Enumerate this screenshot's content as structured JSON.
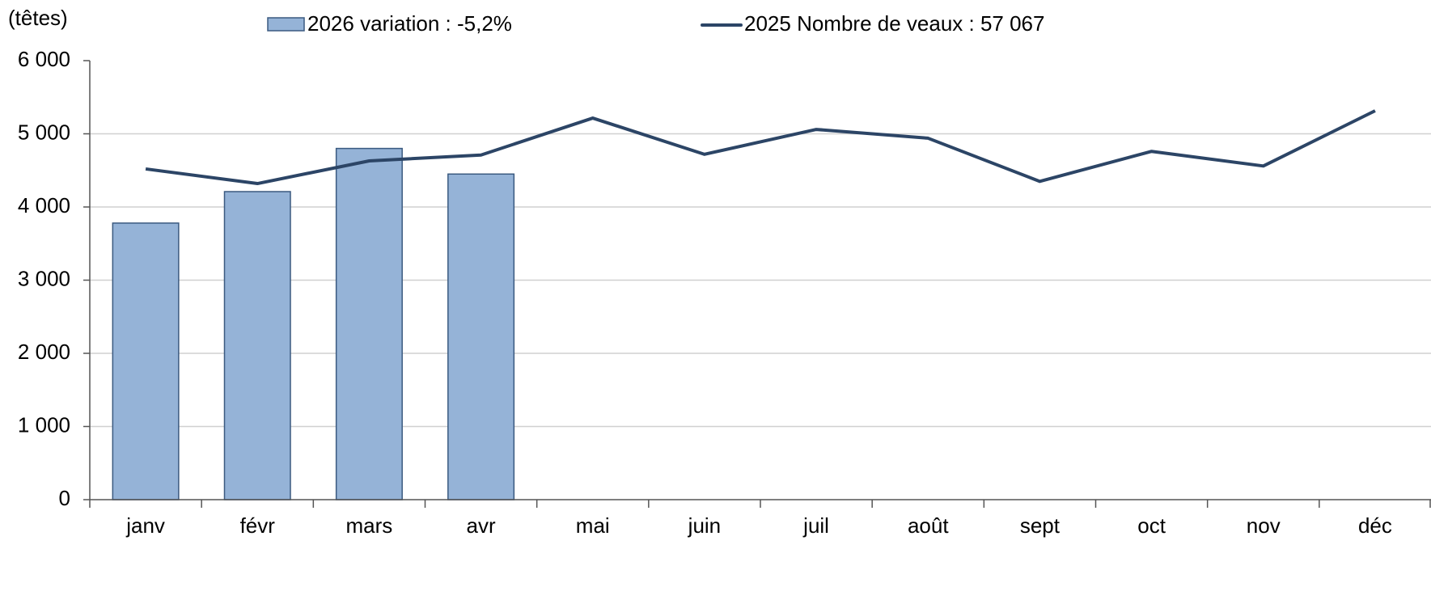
{
  "chart_data": {
    "type": "bar_line",
    "unit_label": "(têtes)",
    "categories": [
      "janv",
      "févr",
      "mars",
      "avr",
      "mai",
      "juin",
      "juil",
      "août",
      "sept",
      "oct",
      "nov",
      "déc"
    ],
    "series": [
      {
        "name": "2026 variation : -5,2%",
        "type": "bar",
        "color": "#95b3d7",
        "edge_color": "#3b5a80",
        "values": [
          3780,
          4210,
          4800,
          4450,
          null,
          null,
          null,
          null,
          null,
          null,
          null,
          null
        ]
      },
      {
        "name": "2025 Nombre de veaux : 57 067",
        "type": "line",
        "color": "#2c4566",
        "values": [
          4520,
          4320,
          4630,
          4710,
          5215,
          4720,
          5060,
          4940,
          4350,
          4760,
          4560,
          5315
        ]
      }
    ],
    "ylim": [
      0,
      6000
    ],
    "yticks": [
      0,
      {
        "value": 1000,
        "label": "1 000"
      },
      {
        "value": 2000,
        "label": "2 000"
      },
      {
        "value": 3000,
        "label": "3 000"
      },
      {
        "value": 4000,
        "label": "4 000"
      },
      {
        "value": 5000,
        "label": "5 000"
      },
      {
        "value": 6000,
        "label": "6 000"
      }
    ],
    "grid": true
  }
}
